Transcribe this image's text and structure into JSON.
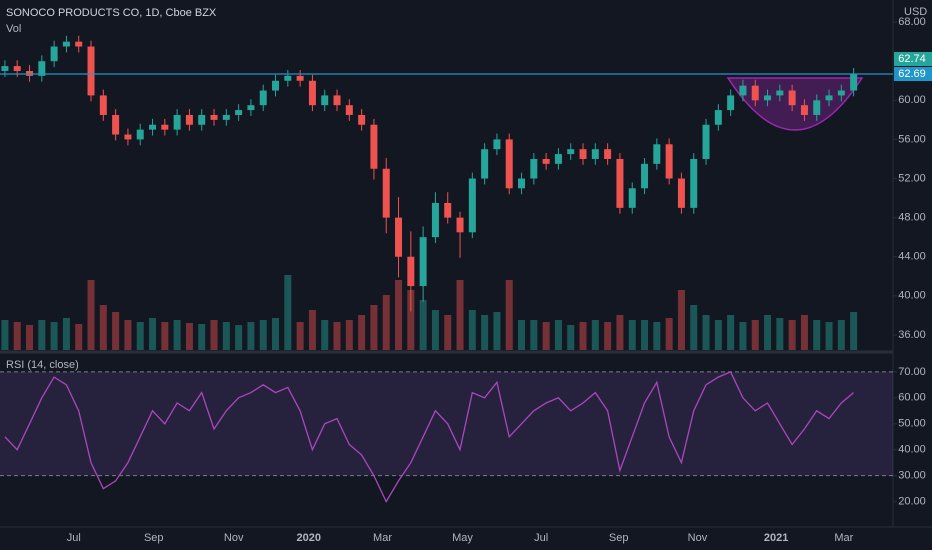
{
  "chart_data": {
    "type": "candlestick",
    "title": "SONOCO PRODUCTS CO, 1D, Cboe BZX",
    "volume_label": "Vol",
    "currency": "USD",
    "up_color": "#26a69a",
    "down_color": "#ef5350",
    "xlim": [
      -0.4,
      72.2
    ],
    "xticks": [
      {
        "value": 5.6,
        "label": "Jul"
      },
      {
        "value": 12.1,
        "label": "Sep"
      },
      {
        "value": 18.6,
        "label": "Nov"
      },
      {
        "value": 24.7,
        "label": "2020"
      },
      {
        "value": 30.7,
        "label": "Mar"
      },
      {
        "value": 37.2,
        "label": "May"
      },
      {
        "value": 43.6,
        "label": "Jul"
      },
      {
        "value": 49.9,
        "label": "Sep"
      },
      {
        "value": 56.3,
        "label": "Nov"
      },
      {
        "value": 62.7,
        "label": "2021"
      },
      {
        "value": 68.2,
        "label": "Mar"
      }
    ],
    "ylim": [
      34.46,
      70.26
    ],
    "yticks": [
      {
        "value": 36,
        "label": "36.00"
      },
      {
        "value": 40,
        "label": "40.00"
      },
      {
        "value": 44,
        "label": "44.00"
      },
      {
        "value": 48,
        "label": "48.00"
      },
      {
        "value": 52,
        "label": "52.00"
      },
      {
        "value": 56,
        "label": "56.00"
      },
      {
        "value": 60,
        "label": "60.00"
      },
      {
        "value": 68,
        "label": "68.00"
      }
    ],
    "open": [
      63,
      63.5,
      63,
      62.5,
      64,
      65.5,
      66,
      65.5,
      60.5,
      58.5,
      56.5,
      56,
      57,
      57.5,
      57,
      58.5,
      57.5,
      58.5,
      58,
      58.5,
      59,
      59.5,
      61,
      62,
      62.5,
      62,
      59.5,
      60.5,
      59.5,
      58.5,
      57.5,
      53,
      48,
      44,
      41,
      46,
      49.5,
      48,
      46.5,
      52,
      55,
      56,
      51,
      52,
      54,
      53.5,
      54.5,
      55,
      54,
      55,
      54,
      49,
      51,
      53.5,
      55.5,
      52,
      49,
      54,
      57.5,
      59,
      60.5,
      61.5,
      60,
      60.5,
      61,
      59.5,
      58.5,
      60,
      60.5,
      61
    ],
    "high": [
      64.1,
      64.1,
      63.6,
      64.6,
      66.1,
      66.6,
      66.6,
      66.1,
      61.1,
      59.1,
      57.1,
      57.6,
      58.1,
      58.1,
      59.1,
      59.1,
      59.1,
      59.1,
      59.1,
      59.6,
      60.1,
      61.6,
      62.6,
      63.1,
      63.1,
      62.6,
      61.1,
      61.1,
      60.1,
      59.1,
      58.1,
      54.1,
      50.1,
      46.6,
      47.1,
      50.6,
      50.6,
      48.6,
      52.6,
      55.6,
      56.6,
      56.6,
      52.6,
      54.6,
      54.6,
      55.1,
      55.6,
      55.6,
      55.6,
      55.6,
      54.6,
      51.6,
      54.1,
      56.1,
      56.1,
      52.6,
      54.6,
      58.1,
      59.6,
      61.1,
      62.1,
      62.1,
      61.1,
      61.6,
      61.6,
      60.1,
      60.6,
      61.1,
      61.6,
      63.3
    ],
    "low": [
      62.4,
      62.4,
      61.9,
      61.9,
      63.4,
      64.9,
      64.9,
      59.9,
      57.9,
      55.9,
      55.4,
      55.4,
      56.4,
      56.4,
      56.4,
      56.9,
      56.9,
      57.4,
      57.4,
      57.9,
      58.4,
      58.9,
      60.4,
      61.4,
      61.4,
      58.9,
      58.9,
      58.9,
      57.9,
      56.9,
      51.9,
      46.4,
      41.9,
      38.4,
      39.4,
      45.4,
      47.4,
      43.9,
      45.9,
      51.4,
      54.4,
      50.4,
      50.4,
      51.4,
      52.9,
      52.9,
      53.9,
      53.4,
      53.4,
      53.4,
      48.4,
      48.4,
      50.4,
      52.9,
      51.4,
      48.4,
      48.4,
      53.4,
      56.9,
      58.4,
      59.9,
      59.4,
      59.4,
      59.9,
      58.9,
      57.9,
      57.9,
      59.4,
      59.9,
      60.4
    ],
    "close": [
      63.5,
      63,
      62.5,
      64,
      65.5,
      66,
      65.5,
      60.5,
      58.5,
      56.5,
      56,
      57,
      57.5,
      57,
      58.5,
      57.5,
      58.5,
      58,
      58.5,
      59,
      59.5,
      61,
      62,
      62.5,
      62,
      59.5,
      60.5,
      59.5,
      58.5,
      57.5,
      53,
      48,
      44,
      41,
      46,
      49.5,
      48,
      46.5,
      52,
      55,
      56,
      51,
      52,
      54,
      53.5,
      54.5,
      55,
      54,
      55,
      54,
      49,
      51,
      53.5,
      55.5,
      52,
      49,
      54,
      57.5,
      59,
      60.5,
      61.5,
      60,
      60.5,
      61,
      59.5,
      58.5,
      60,
      60.5,
      61,
      62.74
    ],
    "volume_ylim": [
      0,
      350
    ],
    "volume": [
      30,
      28,
      25,
      30,
      28,
      32,
      26,
      70,
      45,
      38,
      30,
      28,
      32,
      28,
      30,
      27,
      26,
      30,
      28,
      25,
      28,
      30,
      32,
      75,
      28,
      40,
      30,
      28,
      30,
      35,
      45,
      55,
      70,
      60,
      50,
      40,
      35,
      70,
      40,
      35,
      38,
      70,
      30,
      30,
      28,
      30,
      25,
      28,
      30,
      28,
      35,
      30,
      30,
      28,
      32,
      60,
      45,
      35,
      30,
      35,
      28,
      30,
      35,
      32,
      30,
      35,
      30,
      28,
      30,
      38
    ],
    "last_price": 62.74,
    "horizontal_line": {
      "value": 62.69,
      "color": "#2196c8"
    },
    "rsi": {
      "title": "RSI (14, close)",
      "color": "#ab47bc",
      "ylim": [
        11,
        76.5
      ],
      "yticks": [
        {
          "value": 20,
          "label": "20.00"
        },
        {
          "value": 30,
          "label": "30.00"
        },
        {
          "value": 40,
          "label": "40.00"
        },
        {
          "value": 50,
          "label": "50.00"
        },
        {
          "value": 60,
          "label": "60.00"
        },
        {
          "value": 70,
          "label": "70.00"
        }
      ],
      "bands": [
        30,
        70
      ],
      "values": [
        45,
        40,
        50,
        60,
        68,
        65,
        55,
        35,
        25,
        28,
        35,
        45,
        55,
        50,
        58,
        55,
        62,
        48,
        55,
        60,
        62,
        65,
        62,
        64,
        55,
        40,
        50,
        52,
        42,
        38,
        30,
        20,
        28,
        35,
        45,
        55,
        50,
        40,
        62,
        60,
        66,
        45,
        50,
        55,
        58,
        60,
        55,
        58,
        62,
        55,
        32,
        45,
        58,
        66,
        45,
        35,
        55,
        65,
        68,
        70,
        60,
        55,
        58,
        50,
        42,
        48,
        55,
        52,
        58,
        62
      ]
    }
  }
}
